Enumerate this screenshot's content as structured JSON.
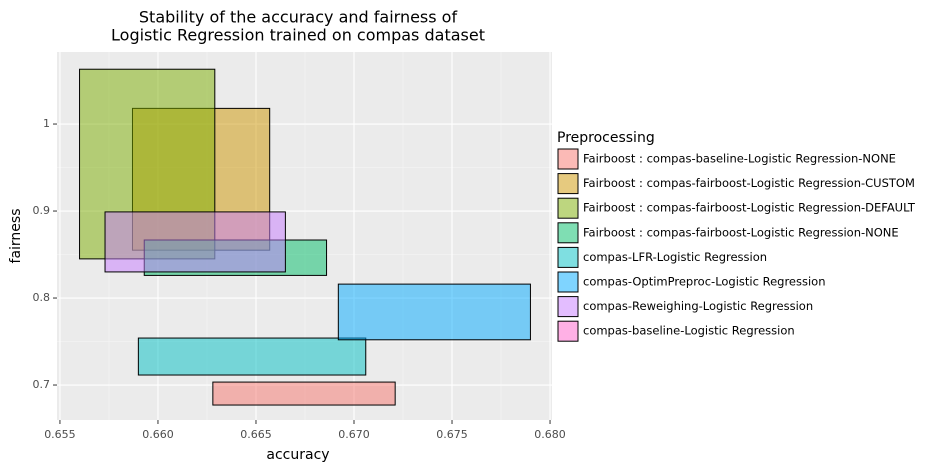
{
  "chart_data": {
    "type": "rect",
    "title": [
      "Stability of the accuracy and fairness of",
      "Logistic Regression trained on compas dataset"
    ],
    "x_label": "accuracy",
    "y_label": "fairness",
    "legend_title": "Preprocessing",
    "xlim": [
      0.65485,
      0.6801
    ],
    "ylim": [
      0.6598,
      1.0828
    ],
    "xticks": [
      0.655,
      0.66,
      {
        "value": 0.665,
        "label": "0.665"
      },
      0.67,
      0.675,
      0.68
    ],
    "xtick_labels_fixed": [
      "0.655",
      "0.660",
      "0.665",
      "0.670",
      "0.675",
      "0.680"
    ],
    "yticks": [
      0.7,
      0.8,
      0.9,
      1
    ],
    "grid": true,
    "legend": "right",
    "series": [
      {
        "name": "Fairboost : compas-baseline-Logistic Regression-NONE",
        "color": "#F8766D",
        "x": [
          0.6628,
          0.6721
        ],
        "y": [
          0.677,
          0.7034
        ]
      },
      {
        "name": "Fairboost : compas-fairboost-Logistic Regression-CUSTOM",
        "color": "#CD9600",
        "x": [
          0.6587,
          0.6657
        ],
        "y": [
          0.855,
          1.018
        ]
      },
      {
        "name": "Fairboost : compas-fairboost-Logistic Regression-DEFAULT",
        "color": "#7CAE00",
        "x": [
          0.656,
          0.6629
        ],
        "y": [
          0.845,
          1.063
        ]
      },
      {
        "name": "Fairboost : compas-fairboost-Logistic Regression-NONE",
        "color": "#00BE67",
        "x": [
          0.6593,
          0.6686
        ],
        "y": [
          0.826,
          0.8667
        ]
      },
      {
        "name": "compas-LFR-Logistic Regression",
        "color": "#00BFC4",
        "x": [
          0.659,
          0.6706
        ],
        "y": [
          0.7115,
          0.754
        ]
      },
      {
        "name": "compas-OptimPreproc-Logistic Regression",
        "color": "#00A9FF",
        "x": [
          0.6692,
          0.679
        ],
        "y": [
          0.752,
          0.816
        ]
      },
      {
        "name": "compas-Reweighing-Logistic Regression",
        "color": "#C77CFF",
        "x": [
          0.6573,
          0.6665
        ],
        "y": [
          0.83,
          0.899
        ]
      },
      {
        "name": "compas-baseline-Logistic Regression",
        "color": "#FF61CC",
        "x": [
          null,
          null
        ],
        "y": [
          null,
          null
        ]
      }
    ]
  }
}
